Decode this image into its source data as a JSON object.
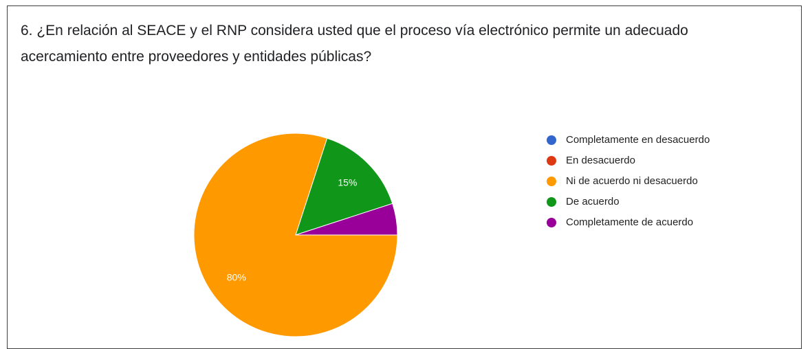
{
  "chart_data": {
    "type": "pie",
    "title": "6. ¿En relación al SEACE y el RNP considera usted que el proceso vía electrónico permite un adecuado acercamiento entre proveedores y entidades públicas?",
    "categories": [
      "Completamente en desacuerdo",
      "En desacuerdo",
      "Ni de acuerdo ni desacuerdo",
      "De acuerdo",
      "Completamente de acuerdo"
    ],
    "values": [
      0,
      0,
      80,
      15,
      5
    ],
    "value_labels": [
      null,
      null,
      "80%",
      "15%",
      null
    ],
    "colors": [
      "#3366cc",
      "#dc3912",
      "#ff9900",
      "#109618",
      "#990099"
    ],
    "legend": "right"
  }
}
